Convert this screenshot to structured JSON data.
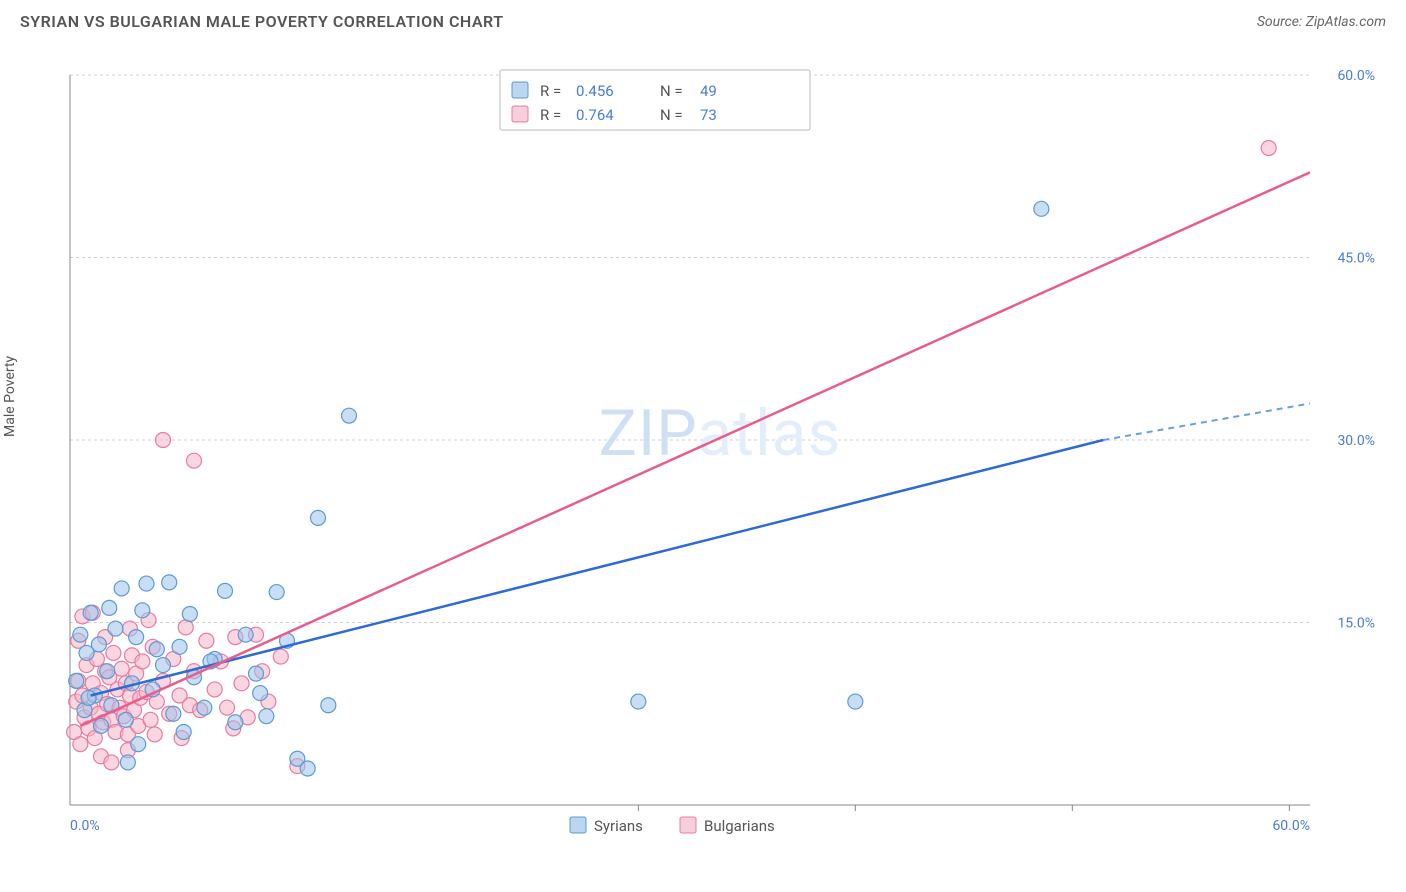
{
  "header": {
    "title": "SYRIAN VS BULGARIAN MALE POVERTY CORRELATION CHART",
    "source_prefix": "Source: ",
    "source_name": "ZipAtlas.com"
  },
  "ylabel": "Male Poverty",
  "watermark": {
    "bold": "ZIP",
    "light": "atlas"
  },
  "chart": {
    "type": "scatter-with-trend",
    "xlim": [
      0,
      60
    ],
    "ylim": [
      0,
      60
    ],
    "y_ticks": [
      15,
      30,
      45,
      60
    ],
    "y_tick_labels": [
      "15.0%",
      "30.0%",
      "45.0%",
      "60.0%"
    ],
    "x_ticks_labels": {
      "min": "0.0%",
      "max": "60.0%"
    },
    "x_tick_positions": [
      27.5,
      38.0,
      48.5,
      59.0
    ],
    "background_color": "#ffffff",
    "grid_color": "#d0d0d0",
    "marker_radius": 7.5,
    "series": [
      {
        "id": "syrians",
        "label": "Syrians",
        "fill": "#9cc3ea",
        "stroke": "#5a9bd5",
        "trend_color": "#2e6bd4",
        "R": "0.456",
        "N": "49",
        "trend": {
          "x1": 1,
          "y1": 9,
          "x2": 50,
          "y2": 30,
          "dash_from_x": 50,
          "dash_to_x": 60,
          "dash_to_y": 33
        },
        "points": [
          [
            0.3,
            10.2
          ],
          [
            0.5,
            14.0
          ],
          [
            0.7,
            7.8
          ],
          [
            0.8,
            12.5
          ],
          [
            1.0,
            15.8
          ],
          [
            1.2,
            9.0
          ],
          [
            1.4,
            13.2
          ],
          [
            1.5,
            6.5
          ],
          [
            1.8,
            11.0
          ],
          [
            2.0,
            8.2
          ],
          [
            2.2,
            14.5
          ],
          [
            2.5,
            17.8
          ],
          [
            2.7,
            7.0
          ],
          [
            3.0,
            10.0
          ],
          [
            3.2,
            13.8
          ],
          [
            3.5,
            16.0
          ],
          [
            3.7,
            18.2
          ],
          [
            4.0,
            9.5
          ],
          [
            4.5,
            11.5
          ],
          [
            5.0,
            7.5
          ],
          [
            5.3,
            13.0
          ],
          [
            5.8,
            15.7
          ],
          [
            6.0,
            10.5
          ],
          [
            6.5,
            8.0
          ],
          [
            7.0,
            12.0
          ],
          [
            7.5,
            17.6
          ],
          [
            8.0,
            6.8
          ],
          [
            8.5,
            14.0
          ],
          [
            9.0,
            10.8
          ],
          [
            9.5,
            7.3
          ],
          [
            10.0,
            17.5
          ],
          [
            10.5,
            13.5
          ],
          [
            11.0,
            3.8
          ],
          [
            11.5,
            3.0
          ],
          [
            12.0,
            23.6
          ],
          [
            12.5,
            8.2
          ],
          [
            13.5,
            32.0
          ],
          [
            27.5,
            8.5
          ],
          [
            38.0,
            8.5
          ],
          [
            47.0,
            49.0
          ],
          [
            2.8,
            3.5
          ],
          [
            3.3,
            5.0
          ],
          [
            4.2,
            12.8
          ],
          [
            1.9,
            16.2
          ],
          [
            0.9,
            8.8
          ],
          [
            6.8,
            11.8
          ],
          [
            9.2,
            9.2
          ],
          [
            4.8,
            18.3
          ],
          [
            5.5,
            6.0
          ]
        ]
      },
      {
        "id": "bulgarians",
        "label": "Bulgarians",
        "fill": "#f5b5c8",
        "stroke": "#e87ba0",
        "trend_color": "#e85d8a",
        "R": "0.764",
        "N": "73",
        "trend": {
          "x1": 0.5,
          "y1": 6.5,
          "x2": 60,
          "y2": 52
        },
        "points": [
          [
            0.2,
            6.0
          ],
          [
            0.3,
            8.5
          ],
          [
            0.4,
            10.2
          ],
          [
            0.5,
            5.0
          ],
          [
            0.6,
            9.0
          ],
          [
            0.7,
            7.2
          ],
          [
            0.8,
            11.5
          ],
          [
            0.9,
            6.3
          ],
          [
            1.0,
            8.0
          ],
          [
            1.1,
            10.0
          ],
          [
            1.2,
            5.5
          ],
          [
            1.3,
            12.0
          ],
          [
            1.4,
            7.5
          ],
          [
            1.5,
            9.2
          ],
          [
            1.6,
            6.8
          ],
          [
            1.7,
            11.0
          ],
          [
            1.8,
            8.3
          ],
          [
            1.9,
            10.5
          ],
          [
            2.0,
            7.0
          ],
          [
            2.1,
            12.5
          ],
          [
            2.2,
            6.0
          ],
          [
            2.3,
            9.5
          ],
          [
            2.4,
            8.0
          ],
          [
            2.5,
            11.2
          ],
          [
            2.6,
            7.3
          ],
          [
            2.7,
            10.0
          ],
          [
            2.8,
            5.8
          ],
          [
            2.9,
            9.0
          ],
          [
            3.0,
            12.3
          ],
          [
            3.1,
            7.8
          ],
          [
            3.2,
            10.8
          ],
          [
            3.3,
            6.5
          ],
          [
            3.4,
            8.8
          ],
          [
            3.5,
            11.8
          ],
          [
            3.7,
            9.3
          ],
          [
            3.9,
            7.0
          ],
          [
            4.0,
            13.0
          ],
          [
            4.2,
            8.5
          ],
          [
            4.5,
            10.2
          ],
          [
            4.8,
            7.5
          ],
          [
            5.0,
            12.0
          ],
          [
            5.3,
            9.0
          ],
          [
            5.6,
            14.6
          ],
          [
            5.8,
            8.2
          ],
          [
            6.0,
            11.0
          ],
          [
            6.3,
            7.8
          ],
          [
            6.6,
            13.5
          ],
          [
            7.0,
            9.5
          ],
          [
            7.3,
            11.8
          ],
          [
            7.6,
            8.0
          ],
          [
            8.0,
            13.8
          ],
          [
            8.3,
            10.0
          ],
          [
            8.6,
            7.2
          ],
          [
            9.0,
            14.0
          ],
          [
            9.3,
            11.0
          ],
          [
            9.6,
            8.5
          ],
          [
            4.5,
            30.0
          ],
          [
            6.0,
            28.3
          ],
          [
            1.5,
            4.0
          ],
          [
            2.0,
            3.5
          ],
          [
            2.8,
            4.5
          ],
          [
            0.6,
            15.5
          ],
          [
            1.1,
            15.8
          ],
          [
            3.8,
            15.2
          ],
          [
            58.0,
            54.0
          ],
          [
            0.4,
            13.5
          ],
          [
            1.7,
            13.8
          ],
          [
            2.9,
            14.5
          ],
          [
            11.0,
            3.2
          ],
          [
            5.4,
            5.5
          ],
          [
            7.9,
            6.3
          ],
          [
            10.2,
            12.2
          ],
          [
            4.1,
            5.8
          ]
        ]
      }
    ]
  },
  "legend_top": {
    "r_label": "R =",
    "n_label": "N ="
  },
  "legend_bottom": {
    "series": [
      "Syrians",
      "Bulgarians"
    ]
  }
}
